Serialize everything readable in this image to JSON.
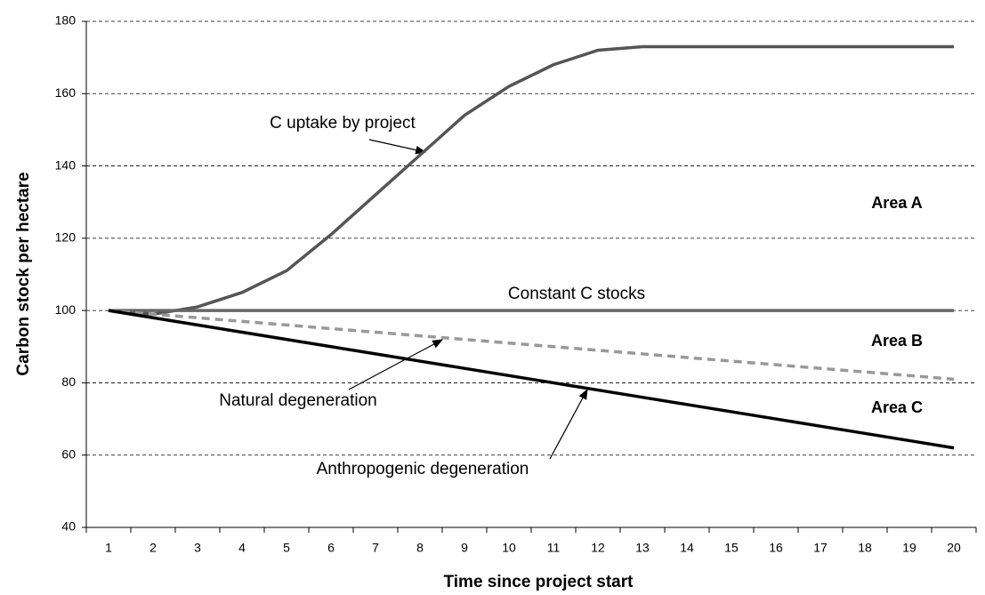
{
  "chart_data": {
    "type": "line",
    "xlabel": "Time since project start",
    "ylabel": "Carbon stock per hectare",
    "categories": [
      "1",
      "2",
      "3",
      "4",
      "5",
      "6",
      "7",
      "8",
      "9",
      "10",
      "11",
      "12",
      "13",
      "14",
      "15",
      "16",
      "17",
      "18",
      "19",
      "20"
    ],
    "series": [
      {
        "name": "C uptake by project",
        "color": "#555555",
        "dashed": false,
        "values": [
          100,
          99,
          101,
          105,
          111,
          121,
          132,
          143,
          154,
          162,
          168,
          172,
          173,
          173,
          173,
          173,
          173,
          173,
          173,
          173
        ]
      },
      {
        "name": "Constant C stocks",
        "color": "#666666",
        "dashed": false,
        "values": [
          100,
          100,
          100,
          100,
          100,
          100,
          100,
          100,
          100,
          100,
          100,
          100,
          100,
          100,
          100,
          100,
          100,
          100,
          100,
          100
        ]
      },
      {
        "name": "Natural degeneration",
        "color": "#999999",
        "dashed": true,
        "values": [
          100,
          99,
          98,
          97,
          96,
          95,
          94,
          93,
          92,
          91,
          90,
          89,
          88,
          87,
          86,
          85,
          84,
          83,
          82,
          81
        ]
      },
      {
        "name": "Anthropogenic degeneration",
        "color": "#000000",
        "dashed": false,
        "values": [
          100,
          98,
          96,
          94,
          92,
          90,
          88,
          86,
          84,
          82,
          80,
          78,
          76,
          74,
          72,
          70,
          68,
          66,
          64,
          62
        ]
      }
    ],
    "annotations": [
      "Area A",
      "Area B",
      "Area C"
    ],
    "ylim": [
      40,
      180
    ],
    "yticks": [
      40,
      60,
      80,
      100,
      120,
      140,
      160,
      180
    ],
    "grid": true
  }
}
